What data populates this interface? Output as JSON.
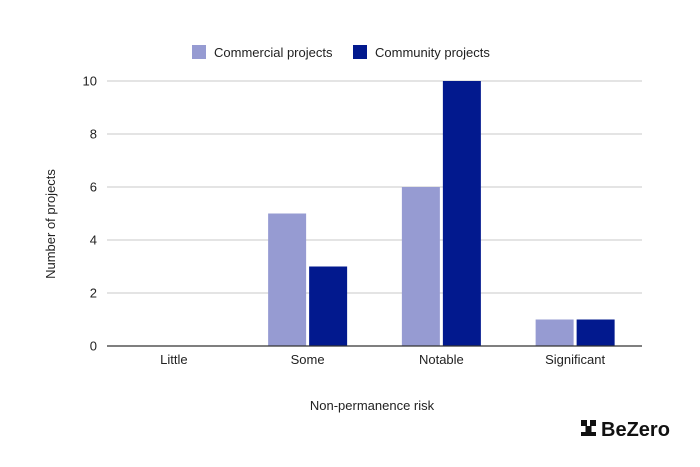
{
  "chart_data": {
    "type": "bar",
    "title": "",
    "xlabel": "Non-permanence risk",
    "ylabel": "Number of projects",
    "categories": [
      "Little",
      "Some",
      "Notable",
      "Significant"
    ],
    "series": [
      {
        "name": "Commercial projects",
        "values": [
          0,
          5,
          6,
          1
        ],
        "color": "#969bd2"
      },
      {
        "name": "Community projects",
        "values": [
          0,
          3,
          10,
          1
        ],
        "color": "#02198e"
      }
    ],
    "ylim": [
      0,
      10
    ],
    "yticks": [
      0,
      2,
      4,
      6,
      8,
      10
    ],
    "grid": true,
    "legend": "top-center"
  },
  "brand": {
    "name": "BeZero",
    "color": "#111111"
  }
}
